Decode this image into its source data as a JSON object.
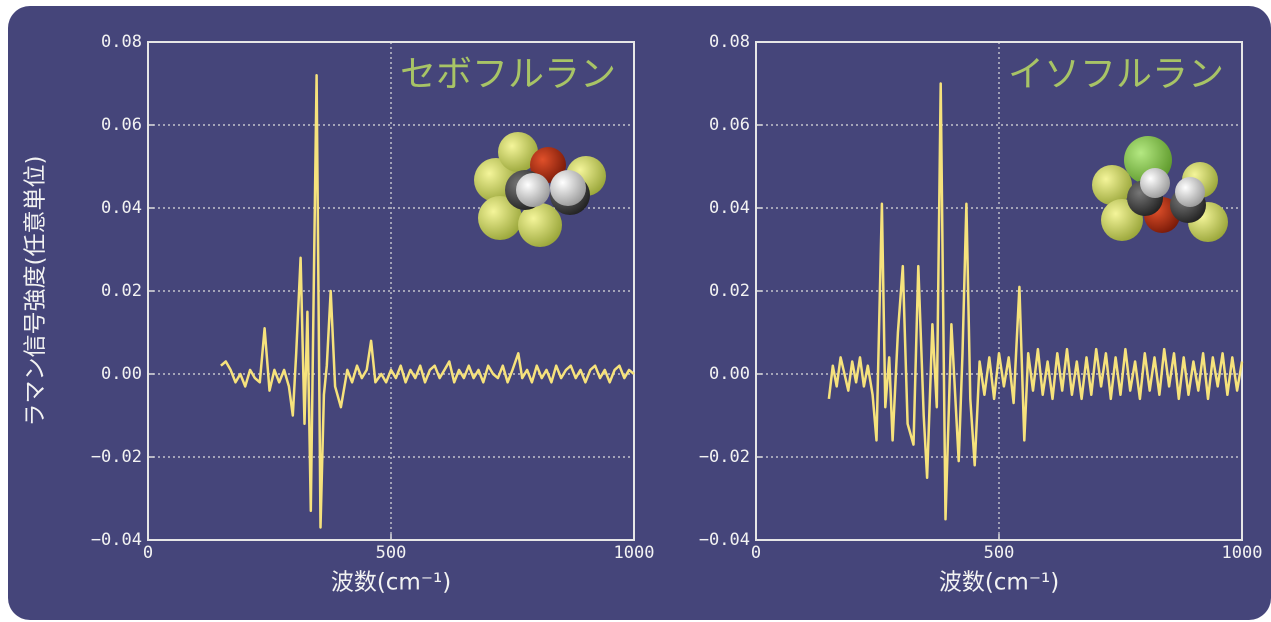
{
  "chart_data": [
    {
      "type": "line",
      "title": "セボフルラン",
      "xlabel": "波数(cm⁻¹)",
      "ylabel": "ラマン信号強度(任意単位)",
      "color": "#f6e27c",
      "grid": true,
      "xlim": [
        0,
        1000
      ],
      "ylim": [
        -0.04,
        0.08
      ],
      "xticks": [
        0,
        500,
        1000
      ],
      "yticks": [
        {
          "value": -0.04,
          "label": "−0.04"
        },
        {
          "value": -0.02,
          "label": "−0.02"
        },
        {
          "value": 0,
          "label": "0.00"
        },
        0.02,
        0.04,
        0.06,
        0.08
      ],
      "x": [
        150,
        160,
        170,
        180,
        190,
        200,
        210,
        220,
        230,
        240,
        250,
        260,
        270,
        280,
        290,
        298,
        305,
        314,
        322,
        328,
        335,
        341,
        347,
        355,
        362,
        368,
        376,
        385,
        397,
        410,
        420,
        430,
        440,
        450,
        459,
        468,
        480,
        490,
        500,
        510,
        520,
        530,
        540,
        550,
        560,
        570,
        580,
        590,
        600,
        610,
        620,
        630,
        640,
        650,
        660,
        670,
        680,
        690,
        700,
        710,
        720,
        730,
        740,
        750,
        762,
        770,
        780,
        790,
        800,
        810,
        820,
        830,
        840,
        850,
        860,
        870,
        880,
        890,
        900,
        910,
        920,
        930,
        940,
        950,
        960,
        970,
        980,
        990,
        1000
      ],
      "values": [
        0.002,
        0.003,
        0.001,
        -0.002,
        0.0,
        -0.003,
        0.001,
        -0.001,
        -0.002,
        0.011,
        -0.004,
        0.001,
        -0.002,
        0.001,
        -0.003,
        -0.01,
        0.005,
        0.028,
        -0.012,
        0.015,
        -0.033,
        0.02,
        0.072,
        -0.037,
        -0.005,
        0.002,
        0.02,
        -0.003,
        -0.008,
        0.001,
        -0.002,
        0.002,
        -0.001,
        0.001,
        0.008,
        -0.002,
        0.0,
        -0.002,
        0.001,
        -0.001,
        0.002,
        -0.002,
        0.001,
        -0.001,
        0.002,
        -0.002,
        0.001,
        0.002,
        -0.001,
        0.001,
        0.003,
        -0.002,
        0.001,
        -0.001,
        0.002,
        -0.001,
        0.001,
        -0.002,
        0.002,
        0.0,
        -0.001,
        0.002,
        -0.002,
        0.001,
        0.005,
        -0.001,
        0.001,
        -0.002,
        0.002,
        -0.001,
        0.001,
        -0.002,
        0.002,
        -0.001,
        0.001,
        0.002,
        -0.001,
        0.001,
        -0.002,
        0.001,
        0.002,
        -0.001,
        0.001,
        -0.002,
        0.001,
        0.002,
        -0.001,
        0.001,
        0.0
      ]
    },
    {
      "type": "line",
      "title": "イソフルラン",
      "xlabel": "波数(cm⁻¹)",
      "color": "#f6e27c",
      "grid": true,
      "xlim": [
        0,
        1000
      ],
      "ylim": [
        -0.04,
        0.08
      ],
      "xticks": [
        0,
        500,
        1000
      ],
      "yticks": [
        {
          "value": -0.04,
          "label": "−0.04"
        },
        {
          "value": -0.02,
          "label": "−0.02"
        },
        {
          "value": 0,
          "label": "0.00"
        },
        0.02,
        0.04,
        0.06,
        0.08
      ],
      "x": [
        150,
        158,
        166,
        174,
        182,
        190,
        198,
        206,
        214,
        222,
        230,
        240,
        248,
        259,
        266,
        274,
        281,
        292,
        302,
        312,
        324,
        334,
        345,
        352,
        363,
        372,
        380,
        390,
        402,
        417,
        425,
        433,
        441,
        450,
        460,
        470,
        480,
        490,
        500,
        510,
        520,
        530,
        542,
        552,
        560,
        570,
        580,
        590,
        600,
        610,
        620,
        630,
        640,
        650,
        660,
        670,
        680,
        690,
        700,
        710,
        720,
        730,
        740,
        750,
        760,
        770,
        780,
        790,
        800,
        810,
        820,
        830,
        840,
        850,
        860,
        870,
        880,
        890,
        900,
        910,
        920,
        930,
        940,
        950,
        960,
        970,
        980,
        990,
        1000
      ],
      "values": [
        -0.006,
        0.002,
        -0.003,
        0.004,
        0.0,
        -0.004,
        0.003,
        -0.002,
        0.004,
        -0.003,
        0.002,
        -0.005,
        -0.016,
        0.041,
        -0.008,
        0.004,
        -0.016,
        0.01,
        0.026,
        -0.012,
        -0.017,
        0.026,
        -0.01,
        -0.025,
        0.012,
        -0.008,
        0.07,
        -0.035,
        0.012,
        -0.021,
        0.005,
        0.041,
        -0.006,
        -0.022,
        0.003,
        -0.005,
        0.004,
        -0.006,
        0.005,
        -0.003,
        0.004,
        -0.007,
        0.021,
        -0.016,
        0.005,
        -0.004,
        0.006,
        -0.005,
        0.003,
        -0.006,
        0.005,
        -0.004,
        0.006,
        -0.005,
        0.003,
        -0.006,
        0.004,
        -0.005,
        0.006,
        -0.003,
        0.005,
        -0.006,
        0.004,
        -0.005,
        0.006,
        -0.004,
        0.003,
        -0.006,
        0.005,
        -0.004,
        0.004,
        -0.005,
        0.006,
        -0.003,
        0.005,
        -0.006,
        0.004,
        -0.005,
        0.003,
        -0.004,
        0.005,
        -0.006,
        0.004,
        -0.003,
        0.005,
        -0.005,
        0.004,
        -0.004,
        0.003
      ]
    }
  ]
}
